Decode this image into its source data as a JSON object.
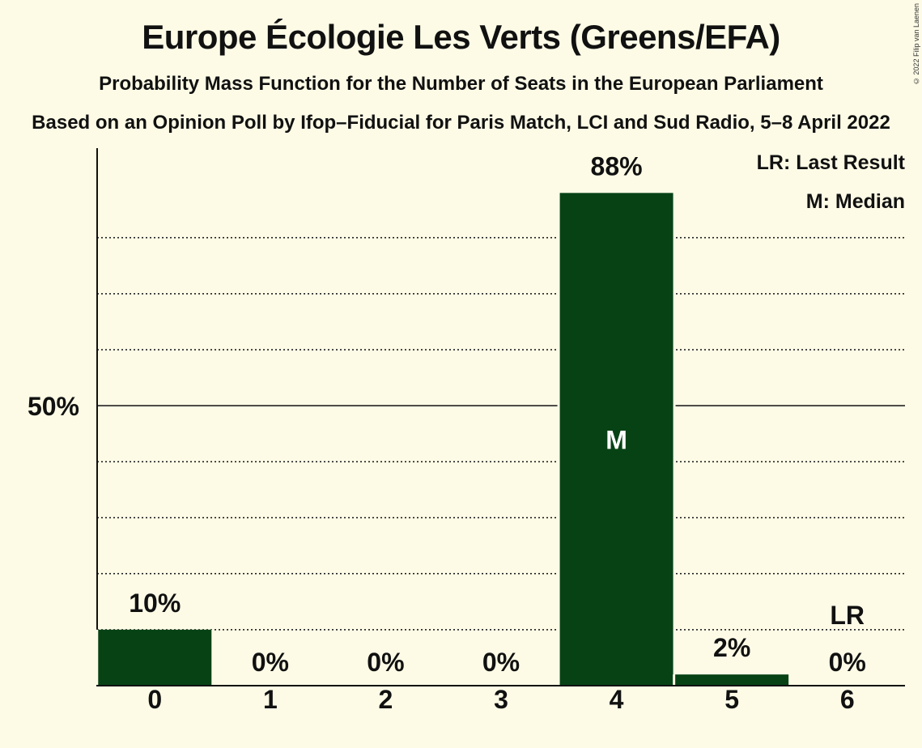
{
  "title": "Europe Écologie Les Verts (Greens/EFA)",
  "subtitle": "Probability Mass Function for the Number of Seats in the European Parliament",
  "source": "Based on an Opinion Poll by Ifop–Fiducial for Paris Match, LCI and Sud Radio, 5–8 April 2022",
  "copyright": "© 2022 Filip van Laenen",
  "legend": {
    "last_result": "LR: Last Result",
    "median": "M: Median"
  },
  "colors": {
    "bar": "#074215",
    "background": "#fdfbe6",
    "text": "#111111"
  },
  "chart_data": {
    "type": "bar",
    "title": "Europe Écologie Les Verts (Greens/EFA)",
    "categories": [
      "0",
      "1",
      "2",
      "3",
      "4",
      "5",
      "6"
    ],
    "values": [
      10,
      0,
      0,
      0,
      88,
      2,
      0
    ],
    "value_labels": [
      "10%",
      "0%",
      "0%",
      "0%",
      "88%",
      "2%",
      "0%"
    ],
    "ylim": [
      0,
      96
    ],
    "y_tick": {
      "value": 50,
      "label": "50%"
    },
    "dotted_gridlines": [
      10,
      20,
      30,
      40,
      60,
      70,
      80
    ],
    "median_index": 4,
    "median_label": "M",
    "last_result_index": 6,
    "last_result_label": "LR",
    "legend_position": "top-right"
  }
}
